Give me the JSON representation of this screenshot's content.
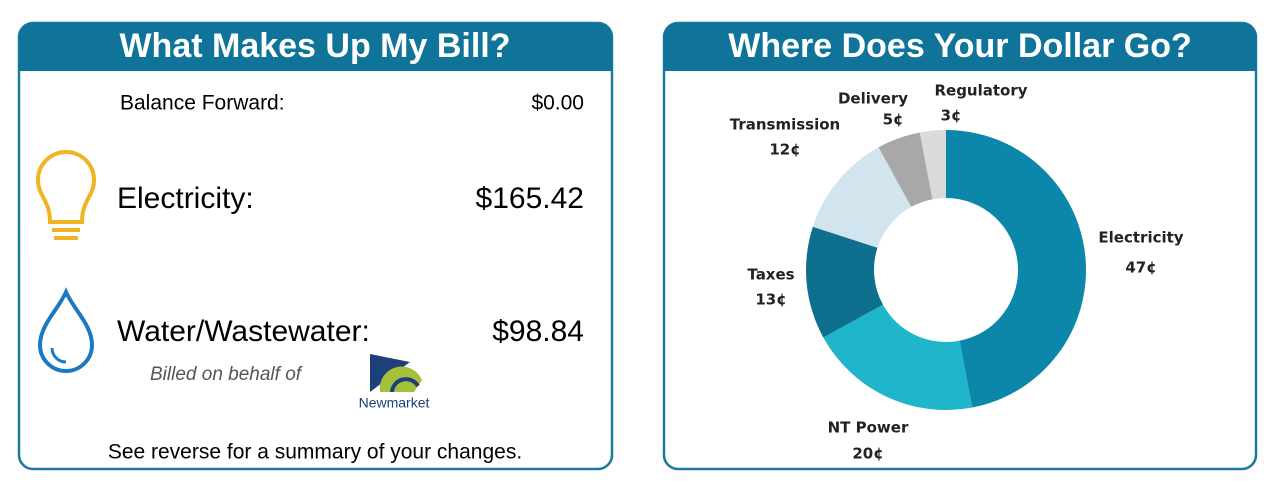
{
  "bill": {
    "title": "What Makes Up My Bill?",
    "balance_forward": {
      "label": "Balance Forward:",
      "amount": "$0.00"
    },
    "electricity": {
      "label": "Electricity:",
      "amount": "$165.42"
    },
    "water": {
      "label": "Water/Wastewater:",
      "amount": "$98.84"
    },
    "billed_on_behalf": "Billed on behalf of",
    "logo_text": "Newmarket",
    "footer": "See reverse for a summary of your changes."
  },
  "chart_data": {
    "type": "donut",
    "title": "Where Does Your Dollar Go?",
    "categories": [
      "Electricity",
      "NT Power",
      "Taxes",
      "Transmission",
      "Delivery",
      "Regulatory"
    ],
    "values": [
      47,
      20,
      13,
      12,
      5,
      3
    ],
    "value_labels": [
      "47¢",
      "20¢",
      "13¢",
      "12¢",
      "5¢",
      "3¢"
    ],
    "colors": [
      "#0c86a9",
      "#1fb6cb",
      "#0e6f8e",
      "#d2e4ee",
      "#a8a8a8",
      "#dadada"
    ]
  }
}
